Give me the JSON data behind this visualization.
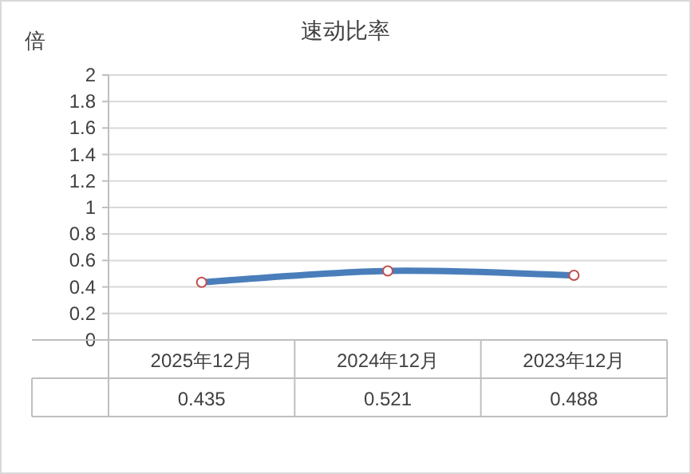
{
  "chart_data": {
    "type": "line",
    "title": "速动比率",
    "ylabel": "倍",
    "categories": [
      "2025年12月",
      "2024年12月",
      "2023年12月"
    ],
    "series": [
      {
        "color": "#4a7ebb",
        "values": [
          0.435,
          0.521,
          0.488
        ]
      }
    ],
    "ylim": [
      0,
      2
    ],
    "yticks": [
      0,
      0.2,
      0.4,
      0.6,
      0.8,
      1,
      1.2,
      1.4,
      1.6,
      1.8,
      2
    ],
    "grid": "y",
    "marker": "circle",
    "data_labels": true
  }
}
